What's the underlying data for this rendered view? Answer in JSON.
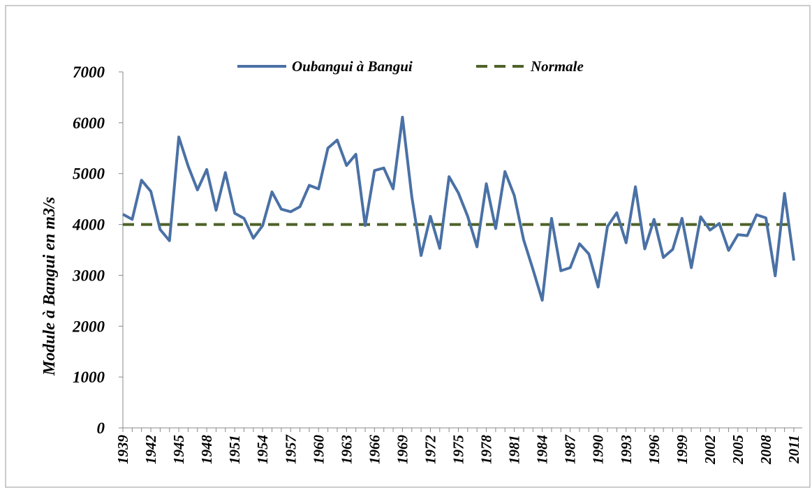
{
  "chart_data": {
    "type": "line",
    "y_label": "Module à Bangui en m3/s",
    "categories": [
      "1939",
      null,
      null,
      "1942",
      null,
      null,
      "1945",
      null,
      null,
      "1948",
      null,
      null,
      "1951",
      null,
      null,
      "1954",
      null,
      null,
      "1957",
      null,
      null,
      "1960",
      null,
      null,
      "1963",
      null,
      null,
      "1966",
      null,
      null,
      "1969",
      null,
      null,
      "1972",
      null,
      null,
      "1975",
      null,
      null,
      "1978",
      null,
      null,
      "1981",
      null,
      null,
      "1984",
      null,
      null,
      "1987",
      null,
      null,
      "1990",
      null,
      null,
      "1993",
      null,
      null,
      "1996",
      null,
      null,
      "1999",
      null,
      null,
      "2002",
      null,
      null,
      "2005",
      null,
      null,
      "2008",
      null,
      null,
      "2011"
    ],
    "series": [
      {
        "name": "Oubangui à Bangui",
        "color": "#4a71a5",
        "dash": false,
        "values": [
          4200,
          4100,
          4870,
          4650,
          3900,
          3680,
          5720,
          5150,
          4680,
          5080,
          4280,
          5020,
          4220,
          4120,
          3730,
          3980,
          4640,
          4300,
          4250,
          4350,
          4770,
          4700,
          5500,
          5660,
          5160,
          5380,
          3980,
          5060,
          5110,
          4700,
          6110,
          4550,
          3390,
          4160,
          3530,
          4940,
          4620,
          4160,
          3560,
          4800,
          3920,
          5040,
          4570,
          3700,
          3120,
          2510,
          4120,
          3090,
          3150,
          3620,
          3420,
          2770,
          3960,
          4230,
          3640,
          4740,
          3520,
          4100,
          3350,
          3510,
          4120,
          3150,
          4150,
          3890,
          4020,
          3490,
          3800,
          3780,
          4190,
          4130,
          2990,
          4610,
          3290
        ]
      },
      {
        "name": "Normale",
        "color": "#4f6228",
        "dash": true,
        "values": [
          4000,
          4000,
          4000,
          4000,
          4000,
          4000,
          4000,
          4000,
          4000,
          4000,
          4000,
          4000,
          4000,
          4000,
          4000,
          4000,
          4000,
          4000,
          4000,
          4000,
          4000,
          4000,
          4000,
          4000,
          4000,
          4000,
          4000,
          4000,
          4000,
          4000,
          4000,
          4000,
          4000,
          4000,
          4000,
          4000,
          4000,
          4000,
          4000,
          4000,
          4000,
          4000,
          4000,
          4000,
          4000,
          4000,
          4000,
          4000,
          4000,
          4000,
          4000,
          4000,
          4000,
          4000,
          4000,
          4000,
          4000,
          4000,
          4000,
          4000,
          4000,
          4000,
          4000,
          4000,
          4000,
          4000,
          4000,
          4000,
          4000,
          4000,
          4000,
          4000,
          4000
        ]
      }
    ],
    "ylim": [
      0,
      7000
    ],
    "yticks": [
      0,
      1000,
      2000,
      3000,
      4000,
      5000,
      6000,
      7000
    ],
    "grid": false,
    "legend": "top"
  }
}
